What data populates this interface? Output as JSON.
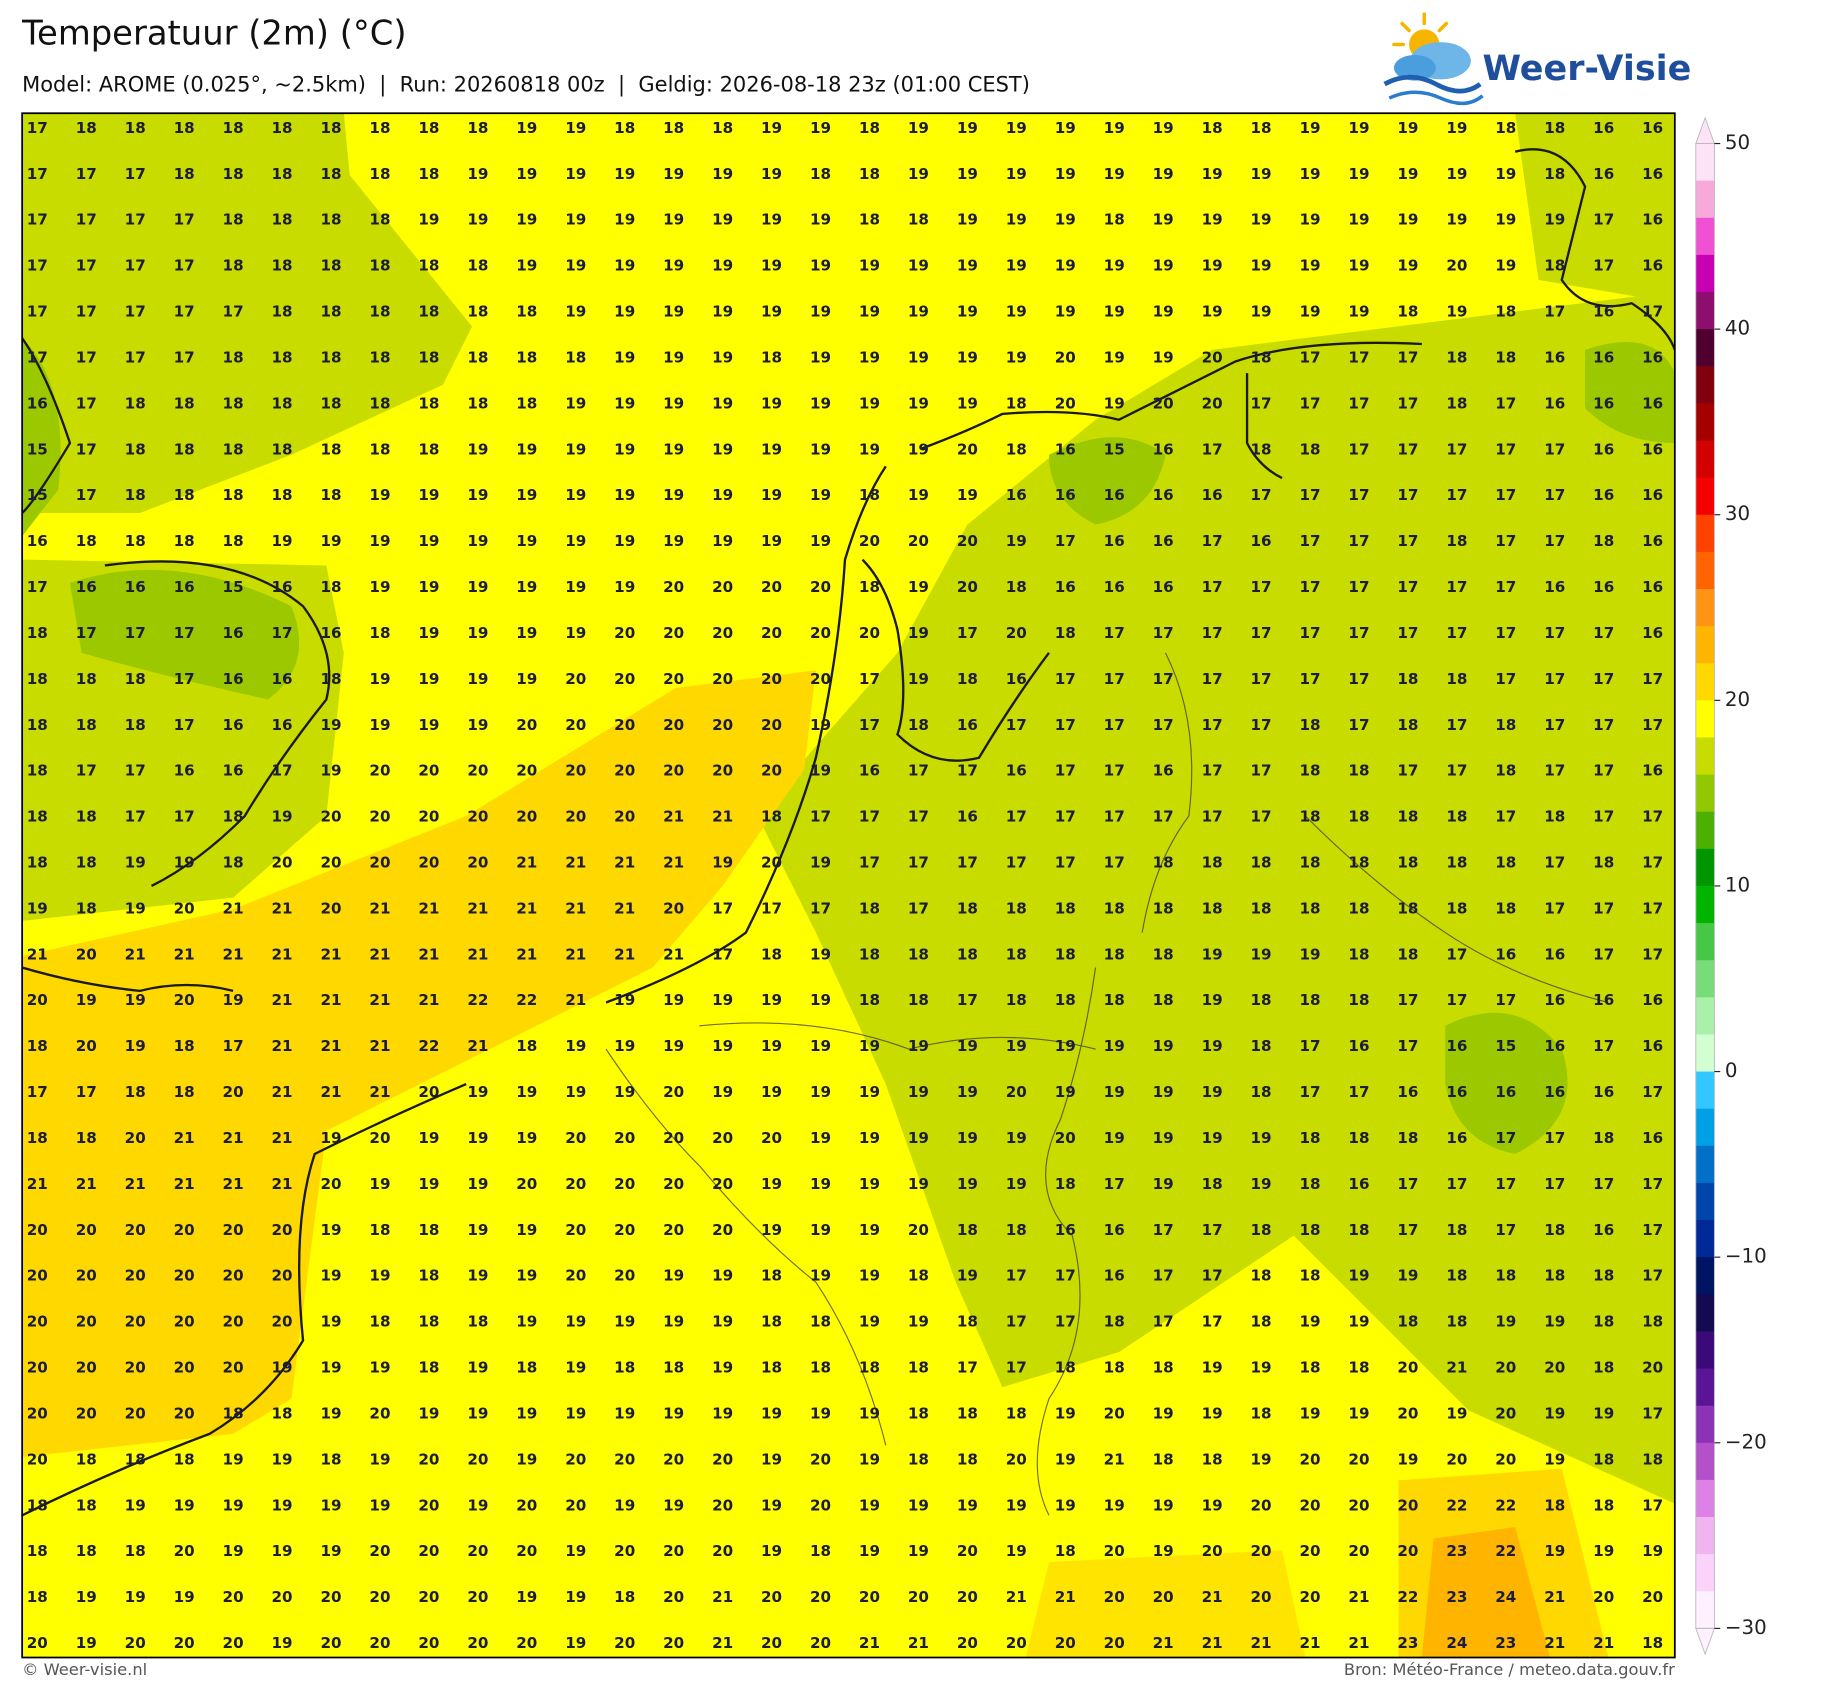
{
  "header": {
    "title": "Temperatuur (2m) (°C)",
    "subtitle": "Model: AROME (0.025°, ~2.5km)  |  Run: 20260818 00z  |  Geldig: 2026-08-18 23z (01:00 CEST)"
  },
  "logo": {
    "text": "Weer-Visie"
  },
  "map": {
    "grid": [
      [
        17,
        18,
        18,
        18,
        18,
        18,
        18,
        18,
        18,
        18,
        19,
        19,
        18,
        18,
        18,
        19,
        19,
        18,
        19,
        19,
        19,
        19,
        19,
        19,
        18,
        18,
        19,
        19,
        19,
        19,
        18,
        18,
        16,
        16
      ],
      [
        17,
        17,
        17,
        18,
        18,
        18,
        18,
        18,
        18,
        19,
        19,
        19,
        19,
        19,
        19,
        19,
        18,
        18,
        19,
        19,
        19,
        19,
        19,
        19,
        19,
        19,
        19,
        19,
        19,
        19,
        19,
        18,
        16,
        16
      ],
      [
        17,
        17,
        17,
        17,
        18,
        18,
        18,
        18,
        19,
        19,
        19,
        19,
        19,
        19,
        19,
        19,
        19,
        18,
        18,
        19,
        19,
        19,
        18,
        19,
        19,
        19,
        19,
        19,
        19,
        19,
        19,
        19,
        17,
        16
      ],
      [
        17,
        17,
        17,
        17,
        18,
        18,
        18,
        18,
        18,
        18,
        19,
        19,
        19,
        19,
        19,
        19,
        19,
        19,
        19,
        19,
        19,
        19,
        19,
        19,
        19,
        19,
        19,
        19,
        19,
        20,
        19,
        18,
        17,
        16
      ],
      [
        17,
        17,
        17,
        17,
        17,
        18,
        18,
        18,
        18,
        18,
        18,
        19,
        19,
        19,
        19,
        19,
        19,
        19,
        19,
        19,
        19,
        19,
        19,
        19,
        19,
        19,
        19,
        19,
        18,
        19,
        18,
        17,
        16,
        17
      ],
      [
        17,
        17,
        17,
        17,
        18,
        18,
        18,
        18,
        18,
        18,
        18,
        18,
        19,
        19,
        19,
        18,
        19,
        19,
        19,
        19,
        19,
        20,
        19,
        19,
        20,
        18,
        17,
        17,
        17,
        18,
        18,
        16,
        16,
        16
      ],
      [
        16,
        17,
        18,
        18,
        18,
        18,
        18,
        18,
        18,
        18,
        18,
        19,
        19,
        19,
        19,
        19,
        19,
        19,
        19,
        19,
        18,
        20,
        19,
        20,
        20,
        17,
        17,
        17,
        17,
        18,
        17,
        16,
        16,
        16
      ],
      [
        15,
        17,
        18,
        18,
        18,
        18,
        18,
        18,
        18,
        19,
        19,
        19,
        19,
        19,
        19,
        19,
        19,
        19,
        19,
        20,
        18,
        16,
        15,
        16,
        17,
        18,
        18,
        17,
        17,
        17,
        17,
        17,
        16,
        16
      ],
      [
        15,
        17,
        18,
        18,
        18,
        18,
        18,
        19,
        19,
        19,
        19,
        19,
        19,
        19,
        19,
        19,
        19,
        18,
        19,
        19,
        16,
        16,
        16,
        16,
        16,
        17,
        17,
        17,
        17,
        17,
        17,
        17,
        16,
        16
      ],
      [
        16,
        18,
        18,
        18,
        18,
        19,
        19,
        19,
        19,
        19,
        19,
        19,
        19,
        19,
        19,
        19,
        19,
        20,
        20,
        20,
        19,
        17,
        16,
        16,
        17,
        16,
        17,
        17,
        17,
        18,
        17,
        17,
        18,
        16
      ],
      [
        17,
        16,
        16,
        16,
        15,
        16,
        18,
        19,
        19,
        19,
        19,
        19,
        19,
        20,
        20,
        20,
        20,
        18,
        19,
        20,
        18,
        16,
        16,
        16,
        17,
        17,
        17,
        17,
        17,
        17,
        17,
        16,
        16,
        16
      ],
      [
        18,
        17,
        17,
        17,
        16,
        17,
        16,
        18,
        19,
        19,
        19,
        19,
        20,
        20,
        20,
        20,
        20,
        20,
        19,
        17,
        20,
        18,
        17,
        17,
        17,
        17,
        17,
        17,
        17,
        17,
        17,
        17,
        17,
        16
      ],
      [
        18,
        18,
        18,
        17,
        16,
        16,
        18,
        19,
        19,
        19,
        19,
        20,
        20,
        20,
        20,
        20,
        20,
        17,
        19,
        18,
        16,
        17,
        17,
        17,
        17,
        17,
        17,
        17,
        18,
        18,
        17,
        17,
        17,
        17
      ],
      [
        18,
        18,
        18,
        17,
        16,
        16,
        19,
        19,
        19,
        19,
        20,
        20,
        20,
        20,
        20,
        20,
        19,
        17,
        18,
        16,
        17,
        17,
        17,
        17,
        17,
        17,
        18,
        17,
        18,
        17,
        18,
        17,
        17,
        17
      ],
      [
        18,
        17,
        17,
        16,
        16,
        17,
        19,
        20,
        20,
        20,
        20,
        20,
        20,
        20,
        20,
        20,
        19,
        16,
        17,
        17,
        16,
        17,
        17,
        16,
        17,
        17,
        18,
        18,
        17,
        17,
        18,
        17,
        17,
        16
      ],
      [
        18,
        18,
        17,
        17,
        18,
        19,
        20,
        20,
        20,
        20,
        20,
        20,
        20,
        21,
        21,
        18,
        17,
        17,
        17,
        16,
        17,
        17,
        17,
        17,
        17,
        17,
        18,
        18,
        18,
        18,
        17,
        18,
        17,
        17
      ],
      [
        18,
        18,
        19,
        19,
        18,
        20,
        20,
        20,
        20,
        20,
        21,
        21,
        21,
        21,
        19,
        20,
        19,
        17,
        17,
        17,
        17,
        17,
        17,
        18,
        18,
        18,
        18,
        18,
        18,
        18,
        18,
        17,
        18,
        17
      ],
      [
        19,
        18,
        19,
        20,
        21,
        21,
        20,
        21,
        21,
        21,
        21,
        21,
        21,
        20,
        17,
        17,
        17,
        18,
        17,
        18,
        18,
        18,
        18,
        18,
        18,
        18,
        18,
        18,
        18,
        18,
        18,
        17,
        17,
        17
      ],
      [
        21,
        20,
        21,
        21,
        21,
        21,
        21,
        21,
        21,
        21,
        21,
        21,
        21,
        21,
        17,
        18,
        19,
        18,
        18,
        18,
        18,
        18,
        18,
        18,
        19,
        19,
        19,
        18,
        18,
        17,
        16,
        16,
        17,
        17
      ],
      [
        20,
        19,
        19,
        20,
        19,
        21,
        21,
        21,
        21,
        22,
        22,
        21,
        19,
        19,
        19,
        19,
        19,
        18,
        18,
        17,
        18,
        18,
        18,
        18,
        19,
        18,
        18,
        18,
        17,
        17,
        17,
        16,
        16,
        16
      ],
      [
        18,
        20,
        19,
        18,
        17,
        21,
        21,
        21,
        22,
        21,
        18,
        19,
        19,
        19,
        19,
        19,
        19,
        19,
        19,
        19,
        19,
        19,
        19,
        19,
        19,
        18,
        17,
        16,
        17,
        16,
        15,
        16,
        17,
        16
      ],
      [
        17,
        17,
        18,
        18,
        20,
        21,
        21,
        21,
        20,
        19,
        19,
        19,
        19,
        20,
        19,
        19,
        19,
        19,
        19,
        19,
        20,
        19,
        19,
        19,
        19,
        18,
        17,
        17,
        16,
        16,
        16,
        16,
        16,
        17
      ],
      [
        18,
        18,
        20,
        21,
        21,
        21,
        19,
        20,
        19,
        19,
        19,
        20,
        20,
        20,
        20,
        20,
        19,
        19,
        19,
        19,
        19,
        20,
        19,
        19,
        19,
        19,
        18,
        18,
        18,
        16,
        17,
        17,
        18,
        16
      ],
      [
        21,
        21,
        21,
        21,
        21,
        21,
        20,
        19,
        19,
        19,
        20,
        20,
        20,
        20,
        20,
        19,
        19,
        19,
        19,
        19,
        19,
        18,
        17,
        19,
        18,
        19,
        18,
        16,
        17,
        17,
        17,
        17,
        17,
        17
      ],
      [
        20,
        20,
        20,
        20,
        20,
        20,
        19,
        18,
        18,
        19,
        19,
        20,
        20,
        20,
        20,
        19,
        19,
        19,
        20,
        18,
        18,
        16,
        16,
        17,
        17,
        18,
        18,
        18,
        17,
        18,
        17,
        18,
        16,
        17
      ],
      [
        20,
        20,
        20,
        20,
        20,
        20,
        19,
        19,
        18,
        19,
        19,
        20,
        20,
        19,
        19,
        18,
        19,
        19,
        18,
        19,
        17,
        17,
        16,
        17,
        17,
        18,
        18,
        19,
        19,
        18,
        18,
        18,
        18,
        17
      ],
      [
        20,
        20,
        20,
        20,
        20,
        20,
        19,
        18,
        18,
        18,
        19,
        19,
        19,
        19,
        19,
        18,
        18,
        19,
        19,
        18,
        17,
        17,
        18,
        17,
        17,
        18,
        19,
        19,
        18,
        18,
        19,
        19,
        18,
        18
      ],
      [
        20,
        20,
        20,
        20,
        20,
        19,
        19,
        19,
        18,
        19,
        18,
        19,
        18,
        18,
        19,
        18,
        18,
        18,
        18,
        17,
        17,
        18,
        18,
        18,
        19,
        19,
        18,
        18,
        20,
        21,
        20,
        20,
        18,
        20
      ],
      [
        20,
        20,
        20,
        20,
        18,
        18,
        19,
        20,
        19,
        19,
        19,
        19,
        19,
        19,
        19,
        19,
        19,
        19,
        18,
        18,
        18,
        19,
        20,
        19,
        19,
        18,
        19,
        19,
        20,
        19,
        20,
        19,
        19,
        17
      ],
      [
        20,
        18,
        18,
        18,
        19,
        19,
        18,
        19,
        20,
        20,
        19,
        20,
        20,
        20,
        20,
        19,
        20,
        19,
        18,
        18,
        20,
        19,
        21,
        18,
        18,
        19,
        20,
        20,
        19,
        20,
        20,
        19,
        18,
        18
      ],
      [
        18,
        18,
        19,
        19,
        19,
        19,
        19,
        19,
        20,
        19,
        20,
        20,
        19,
        19,
        20,
        19,
        20,
        19,
        19,
        19,
        19,
        19,
        19,
        19,
        19,
        20,
        20,
        20,
        20,
        22,
        22,
        18,
        18,
        17
      ],
      [
        18,
        18,
        18,
        20,
        19,
        19,
        19,
        20,
        20,
        20,
        20,
        19,
        20,
        20,
        20,
        19,
        18,
        19,
        19,
        20,
        19,
        18,
        20,
        19,
        20,
        20,
        20,
        20,
        20,
        23,
        22,
        19,
        19,
        19
      ],
      [
        18,
        19,
        19,
        19,
        20,
        20,
        20,
        20,
        20,
        20,
        19,
        19,
        18,
        20,
        21,
        20,
        20,
        20,
        20,
        20,
        21,
        21,
        20,
        20,
        21,
        20,
        20,
        21,
        22,
        23,
        24,
        21,
        20,
        20
      ],
      [
        20,
        19,
        20,
        20,
        20,
        19,
        20,
        20,
        20,
        20,
        20,
        19,
        20,
        20,
        21,
        20,
        20,
        21,
        21,
        20,
        20,
        20,
        20,
        21,
        21,
        21,
        21,
        21,
        23,
        24,
        23,
        21,
        21,
        18
      ]
    ]
  },
  "colorbar": {
    "ticks": [
      50,
      40,
      30,
      20,
      10,
      0,
      {
        "value": -10,
        "label": "−10"
      },
      {
        "value": -20,
        "label": "−20"
      },
      {
        "value": -30,
        "label": "−30"
      }
    ],
    "colors": [
      "#fde3f6",
      "#f7a9dc",
      "#f050d2",
      "#c800b4",
      "#8c0f6e",
      "#500030",
      "#800010",
      "#a40000",
      "#d20000",
      "#f50000",
      "#ff4200",
      "#ff6400",
      "#ff9414",
      "#ffb400",
      "#ffd800",
      "#ffff00",
      "#c8dc00",
      "#92c800",
      "#4cb000",
      "#009600",
      "#00b400",
      "#46c846",
      "#78dc78",
      "#aaf0aa",
      "#d2ffd2",
      "#32c8ff",
      "#00a0e6",
      "#0070c8",
      "#0046aa",
      "#002896",
      "#001464",
      "#140a50",
      "#3c0a78",
      "#5a1496",
      "#8c32b4",
      "#b450c8",
      "#dc82e6",
      "#f0b4f0",
      "#fad2fa",
      "#fff0ff"
    ]
  },
  "footer": {
    "credit": "© Weer-visie.nl",
    "source": "Bron: Météo-France / meteo.data.gouv.fr"
  }
}
